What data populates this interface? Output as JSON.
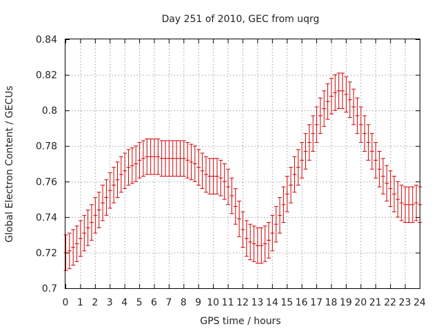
{
  "chart_data": {
    "type": "scatter",
    "title": "Day 251 of 2010, GEC from uqrg",
    "xlabel": "GPS time / hours",
    "ylabel": "Global Electron Content / GECUs",
    "xlim": [
      0,
      24
    ],
    "ylim": [
      0.7,
      0.84
    ],
    "grid": true,
    "x_ticks": [
      "0",
      "1",
      "2",
      "3",
      "4",
      "5",
      "6",
      "7",
      "8",
      "9",
      "10",
      "11",
      "12",
      "13",
      "14",
      "15",
      "16",
      "17",
      "18",
      "19",
      "20",
      "21",
      "22",
      "23",
      "24"
    ],
    "y_ticks": [
      "0.7",
      "0.72",
      "0.74",
      "0.76",
      "0.78",
      "0.8",
      "0.82",
      "0.84"
    ],
    "error_halfwidth": 0.01,
    "series": [
      {
        "color": "#cc0000",
        "x": [
          0,
          0.25,
          0.5,
          0.75,
          1,
          1.25,
          1.5,
          1.75,
          2,
          2.25,
          2.5,
          2.75,
          3,
          3.25,
          3.5,
          3.75,
          4,
          4.25,
          4.5,
          4.75,
          5,
          5.25,
          5.5,
          5.75,
          6,
          6.25,
          6.5,
          6.75,
          7,
          7.25,
          7.5,
          7.75,
          8,
          8.25,
          8.5,
          8.75,
          9,
          9.25,
          9.5,
          9.75,
          10,
          10.25,
          10.5,
          10.75,
          11,
          11.25,
          11.5,
          11.75,
          12,
          12.25,
          12.5,
          12.75,
          13,
          13.25,
          13.5,
          13.75,
          14,
          14.25,
          14.5,
          14.75,
          15,
          15.25,
          15.5,
          15.75,
          16,
          16.25,
          16.5,
          16.75,
          17,
          17.25,
          17.5,
          17.75,
          18,
          18.25,
          18.5,
          18.75,
          19,
          19.25,
          19.5,
          19.75,
          20,
          20.25,
          20.5,
          20.75,
          21,
          21.25,
          21.5,
          21.75,
          22,
          22.25,
          22.5,
          22.75,
          23,
          23.25,
          23.5,
          23.75,
          24
        ],
        "y": [
          0.72,
          0.721,
          0.723,
          0.725,
          0.728,
          0.731,
          0.734,
          0.737,
          0.741,
          0.744,
          0.748,
          0.751,
          0.755,
          0.758,
          0.761,
          0.764,
          0.766,
          0.768,
          0.769,
          0.77,
          0.772,
          0.773,
          0.774,
          0.774,
          0.774,
          0.774,
          0.773,
          0.773,
          0.773,
          0.773,
          0.773,
          0.773,
          0.773,
          0.772,
          0.771,
          0.77,
          0.768,
          0.766,
          0.764,
          0.763,
          0.763,
          0.763,
          0.762,
          0.76,
          0.757,
          0.752,
          0.746,
          0.739,
          0.733,
          0.728,
          0.726,
          0.725,
          0.724,
          0.724,
          0.725,
          0.727,
          0.731,
          0.736,
          0.741,
          0.747,
          0.753,
          0.758,
          0.764,
          0.768,
          0.772,
          0.777,
          0.782,
          0.787,
          0.792,
          0.797,
          0.801,
          0.805,
          0.808,
          0.81,
          0.811,
          0.811,
          0.809,
          0.806,
          0.802,
          0.797,
          0.792,
          0.787,
          0.782,
          0.777,
          0.772,
          0.767,
          0.763,
          0.759,
          0.756,
          0.753,
          0.75,
          0.748,
          0.747,
          0.747,
          0.747,
          0.748,
          0.747
        ]
      }
    ]
  }
}
